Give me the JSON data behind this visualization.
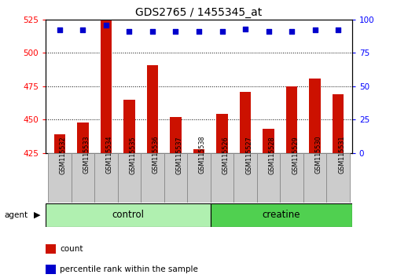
{
  "title": "GDS2765 / 1455345_at",
  "samples": [
    "GSM115532",
    "GSM115533",
    "GSM115534",
    "GSM115535",
    "GSM115536",
    "GSM115537",
    "GSM115538",
    "GSM115526",
    "GSM115527",
    "GSM115528",
    "GSM115529",
    "GSM115530",
    "GSM115531"
  ],
  "counts": [
    439,
    448,
    524,
    465,
    491,
    452,
    428,
    454,
    471,
    443,
    475,
    481,
    469
  ],
  "percentile_ranks": [
    92,
    92,
    96,
    91,
    91,
    91,
    91,
    91,
    93,
    91,
    91,
    92,
    92
  ],
  "control_count": 7,
  "creatine_count": 6,
  "control_color": "#b0f0b0",
  "creatine_color": "#50d050",
  "ylim_left": [
    425,
    525
  ],
  "ylim_right": [
    0,
    100
  ],
  "yticks_left": [
    425,
    450,
    475,
    500,
    525
  ],
  "yticks_right": [
    0,
    25,
    50,
    75,
    100
  ],
  "bar_color": "#cc1100",
  "dot_color": "#0000cc",
  "bar_baseline": 425,
  "bar_width": 0.5,
  "legend_items": [
    {
      "label": "count",
      "color": "#cc1100"
    },
    {
      "label": "percentile rank within the sample",
      "color": "#0000cc"
    }
  ],
  "tick_box_color": "#cccccc",
  "tick_box_edge": "#888888"
}
